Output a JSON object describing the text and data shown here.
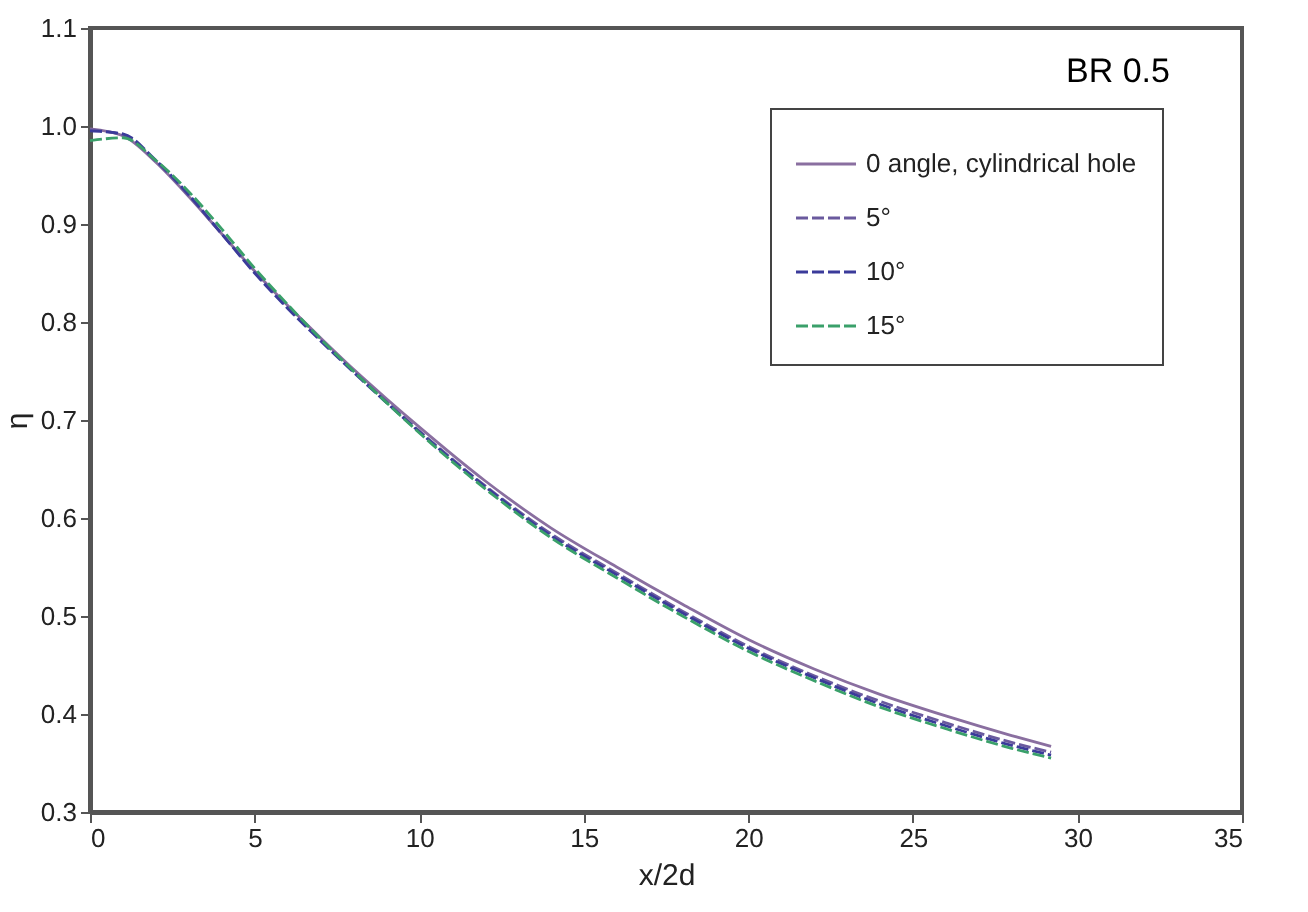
{
  "chart_data": {
    "type": "line",
    "xlabel": "x/2d",
    "ylabel": "η",
    "annotations": [
      "BR 0.5"
    ],
    "xlim": [
      0,
      35
    ],
    "xticks": [
      0,
      5,
      10,
      15,
      20,
      25,
      30,
      35
    ],
    "ylim": [
      0.3,
      1.1
    ],
    "yticks": [
      0.3,
      0.4,
      0.5,
      0.6,
      0.7,
      0.8,
      0.9,
      {
        "value": 1,
        "label": "1.0"
      },
      1.1
    ],
    "x": [
      0,
      1,
      2,
      3,
      4,
      5,
      6,
      7,
      8,
      9,
      10,
      12,
      14,
      16,
      18,
      20,
      22,
      24,
      26,
      28,
      29.2
    ],
    "grid": false,
    "legend": "top right",
    "marker": "none",
    "series": [
      {
        "name": "0 angle, cylindrical hole",
        "color": "#8a6fa0",
        "line_style": "solid",
        "values": [
          0.997,
          0.99,
          0.963,
          0.928,
          0.89,
          0.852,
          0.817,
          0.784,
          0.752,
          0.722,
          0.693,
          0.638,
          0.59,
          0.55,
          0.512,
          0.476,
          0.446,
          0.42,
          0.398,
          0.378,
          0.367
        ]
      },
      {
        "name": "5°",
        "color": "#6a5a9e",
        "line_style": "dashed",
        "values": [
          0.996,
          0.991,
          0.964,
          0.929,
          0.89,
          0.851,
          0.815,
          0.782,
          0.75,
          0.719,
          0.689,
          0.633,
          0.584,
          0.544,
          0.505,
          0.469,
          0.439,
          0.413,
          0.391,
          0.371,
          0.361
        ]
      },
      {
        "name": "10°",
        "color": "#3b3b9a",
        "line_style": "dashed",
        "values": [
          0.995,
          0.992,
          0.965,
          0.93,
          0.89,
          0.85,
          0.814,
          0.781,
          0.749,
          0.718,
          0.688,
          0.632,
          0.582,
          0.542,
          0.503,
          0.467,
          0.437,
          0.41,
          0.388,
          0.368,
          0.358
        ]
      },
      {
        "name": "15°",
        "color": "#3aa06a",
        "line_style": "dashed",
        "values": [
          0.985,
          0.988,
          0.965,
          0.933,
          0.895,
          0.855,
          0.818,
          0.783,
          0.75,
          0.718,
          0.687,
          0.63,
          0.58,
          0.539,
          0.5,
          0.464,
          0.434,
          0.407,
          0.385,
          0.365,
          0.355
        ]
      }
    ]
  }
}
